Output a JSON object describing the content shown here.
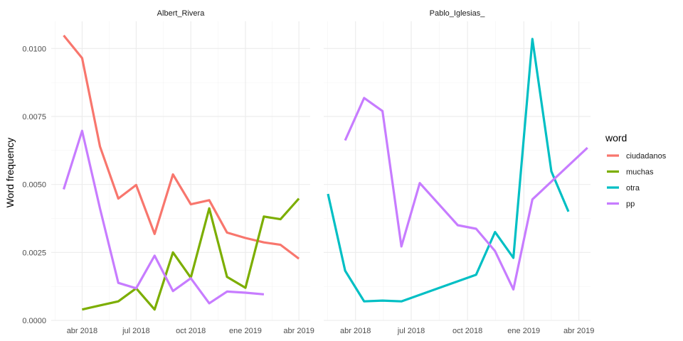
{
  "chart_data": {
    "type": "line",
    "ylabel": "Word frequency",
    "ylim": [
      0,
      0.011
    ],
    "y_ticks": [
      "0.0000",
      "0.0025",
      "0.0050",
      "0.0075",
      "0.0100"
    ],
    "y_tick_values": [
      0,
      0.0025,
      0.005,
      0.0075,
      0.01
    ],
    "x_ticks": [
      "abr 2018",
      "jul 2018",
      "oct 2018",
      "ene 2019",
      "abr 2019"
    ],
    "x_tick_values": [
      "2018-04-01",
      "2018-07-01",
      "2018-10-01",
      "2019-01-01",
      "2019-04-01"
    ],
    "xlim": [
      "2018-02-08",
      "2019-04-20"
    ],
    "grid": true,
    "legend": {
      "title": "word",
      "position": "right",
      "entries": [
        "ciudadanos",
        "muchas",
        "otra",
        "pp"
      ]
    },
    "colors": {
      "ciudadanos": "#F8766D",
      "muchas": "#7CAE00",
      "otra": "#00BFC4",
      "pp": "#C77CFF"
    },
    "panels": [
      {
        "title": "Albert_Rivera",
        "series": [
          {
            "name": "ciudadanos",
            "x": [
              "2018-03-01",
              "2018-04-01",
              "2018-05-01",
              "2018-06-01",
              "2018-07-01",
              "2018-08-01",
              "2018-09-01",
              "2018-10-01",
              "2018-11-01",
              "2018-12-01",
              "2019-01-01",
              "2019-02-01",
              "2019-03-01",
              "2019-04-01"
            ],
            "y": [
              0.01048,
              0.00965,
              0.0064,
              0.00448,
              0.00498,
              0.00318,
              0.00537,
              0.00427,
              0.00442,
              0.00323,
              0.00303,
              0.00287,
              0.00278,
              0.00227
            ]
          },
          {
            "name": "muchas",
            "x": [
              "2018-04-01",
              "2018-05-01",
              "2018-06-01",
              "2018-07-01",
              "2018-08-01",
              "2018-09-01",
              "2018-10-01",
              "2018-11-01",
              "2018-12-01",
              "2019-01-01",
              "2019-02-01",
              "2019-03-01",
              "2019-04-01"
            ],
            "y": [
              0.0004,
              0.00055,
              0.0007,
              0.00118,
              0.0004,
              0.0025,
              0.00157,
              0.00412,
              0.0016,
              0.0012,
              0.00382,
              0.00372,
              0.00448
            ]
          },
          {
            "name": "pp",
            "x": [
              "2018-03-01",
              "2018-04-01",
              "2018-05-01",
              "2018-06-01",
              "2018-07-01",
              "2018-08-01",
              "2018-09-01",
              "2018-10-01",
              "2018-11-01",
              "2018-12-01",
              "2019-01-01",
              "2019-02-01"
            ],
            "y": [
              0.00482,
              0.00697,
              0.00412,
              0.00138,
              0.00118,
              0.00238,
              0.00108,
              0.00155,
              0.00063,
              0.00106,
              0.00102,
              0.00096
            ]
          }
        ]
      },
      {
        "title": "Pablo_Iglesias_",
        "series": [
          {
            "name": "otra",
            "x": [
              "2018-02-15",
              "2018-03-15",
              "2018-04-15",
              "2018-05-15",
              "2018-06-15",
              "2018-10-15",
              "2018-11-15",
              "2018-12-15",
              "2019-01-15",
              "2019-02-15",
              "2019-03-15"
            ],
            "y": [
              0.00465,
              0.00183,
              0.0007,
              0.00073,
              0.0007,
              0.00168,
              0.00325,
              0.0023,
              0.01035,
              0.00548,
              0.004
            ]
          },
          {
            "name": "pp",
            "x": [
              "2018-03-15",
              "2018-04-15",
              "2018-05-15",
              "2018-06-15",
              "2018-07-15",
              "2018-09-15",
              "2018-10-15",
              "2018-11-15",
              "2018-12-15",
              "2019-01-15",
              "2019-04-15"
            ],
            "y": [
              0.00662,
              0.00818,
              0.0077,
              0.00272,
              0.00505,
              0.0035,
              0.00337,
              0.00255,
              0.00114,
              0.00445,
              0.00635
            ]
          }
        ]
      }
    ]
  }
}
